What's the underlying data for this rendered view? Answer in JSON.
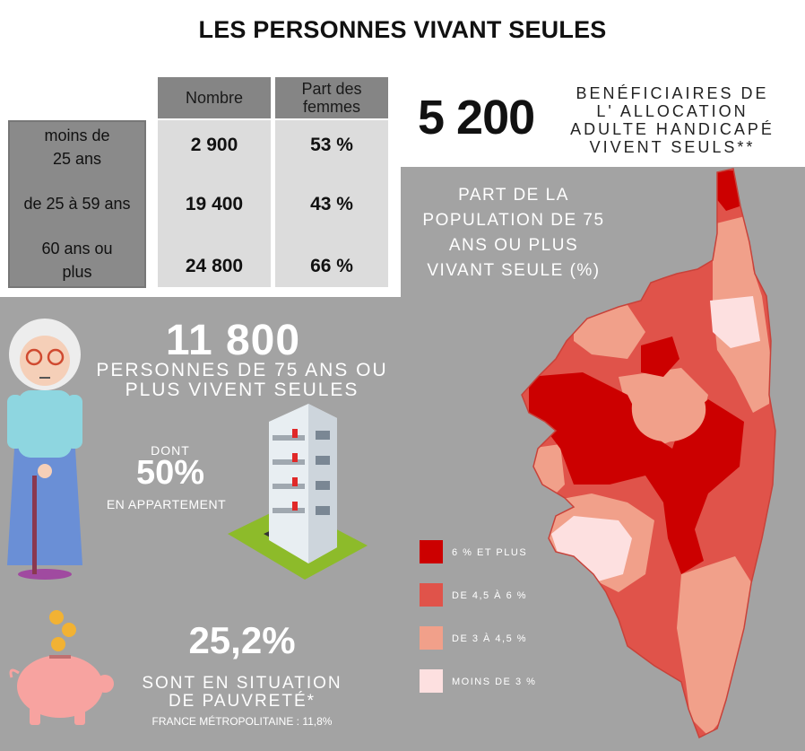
{
  "title": "LES PERSONNES VIVANT SEULES",
  "table": {
    "col_headers": [
      "Nombre",
      "Part des femmes"
    ],
    "rows": [
      {
        "label": "moins de 25 ans",
        "nombre": "2 900",
        "part": "53 %"
      },
      {
        "label": "de 25 à 59 ans",
        "nombre": "19 400",
        "part": "43 %"
      },
      {
        "label": "60 ans ou plus",
        "nombre": "24 800",
        "part": "66 %"
      }
    ]
  },
  "handicap": {
    "value": "5 200",
    "text_line1": "BENÉFICIAIRES DE",
    "text_line2": "L' ALLOCATION",
    "text_line3": "ADULTE HANDICAPÉ",
    "text_line4": "VIVENT SEULS**"
  },
  "map": {
    "title_line1": "PART DE LA",
    "title_line2": "POPULATION DE 75",
    "title_line3": "ANS OU PLUS",
    "title_line4": "VIVANT SEULE (%)",
    "legend": [
      {
        "label": "6 % ET PLUS",
        "color": "#cc0000"
      },
      {
        "label": "DE 4,5 À 6 %",
        "color": "#e0534a"
      },
      {
        "label": "DE 3 À 4,5 %",
        "color": "#f1a08a"
      },
      {
        "label": "MOINS DE 3 %",
        "color": "#fde0e0"
      }
    ]
  },
  "seniors": {
    "value": "11 800",
    "line1": "PERSONNES DE 75 ANS OU",
    "line2": "PLUS VIVENT SEULES",
    "dont": "DONT",
    "pct": "50%",
    "appart": "EN APPARTEMENT"
  },
  "pauvrete": {
    "value": "25,2%",
    "line1": "SONT EN SITUATION",
    "line2": "DE PAUVRETÉ*",
    "france": "FRANCE MÉTROPOLITAINE : 11,8%"
  },
  "icons": {
    "grandma": "grandmother-icon",
    "building": "apartment-building-icon",
    "piggy": "piggy-bank-icon"
  }
}
